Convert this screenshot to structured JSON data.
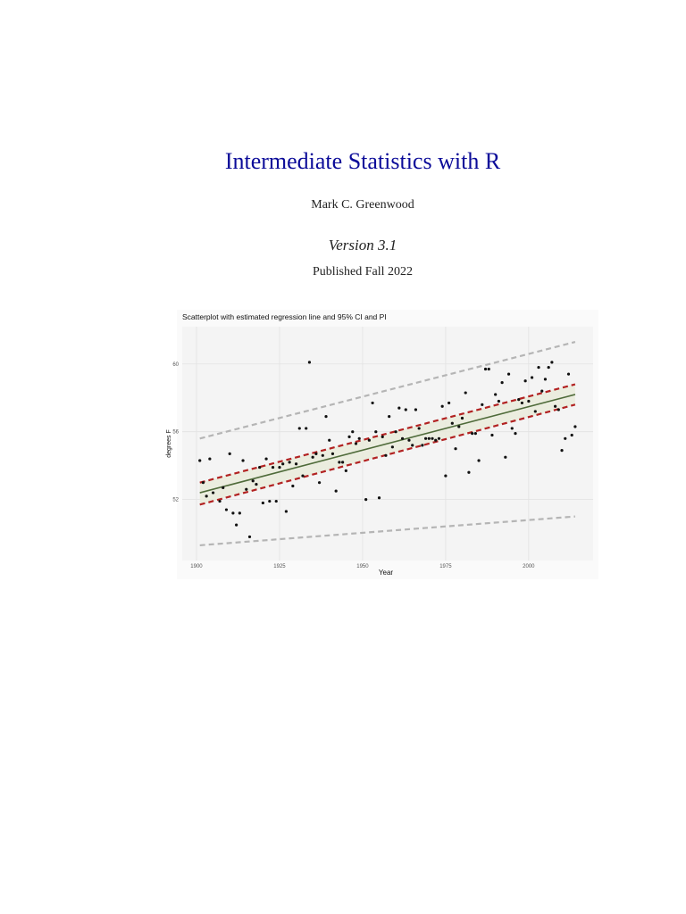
{
  "title": "Intermediate Statistics with R",
  "author": "Mark C. Greenwood",
  "version": "Version 3.1",
  "published": "Published Fall 2022",
  "chart_data": {
    "type": "scatter",
    "title": "Scatterplot with estimated regression line and 95% CI and PI",
    "xlabel": "Year",
    "ylabel": "degrees F",
    "x": [
      1901,
      1902,
      1903,
      1904,
      1905,
      1907,
      1908,
      1909,
      1910,
      1911,
      1912,
      1913,
      1914,
      1915,
      1916,
      1917,
      1918,
      1919,
      1920,
      1921,
      1922,
      1923,
      1924,
      1925,
      1926,
      1927,
      1928,
      1929,
      1930,
      1931,
      1932,
      1933,
      1934,
      1935,
      1936,
      1937,
      1938,
      1939,
      1940,
      1941,
      1942,
      1943,
      1944,
      1945,
      1946,
      1947,
      1948,
      1949,
      1951,
      1952,
      1953,
      1954,
      1955,
      1956,
      1957,
      1958,
      1959,
      1960,
      1961,
      1962,
      1963,
      1964,
      1965,
      1966,
      1967,
      1968,
      1969,
      1970,
      1971,
      1972,
      1973,
      1974,
      1975,
      1976,
      1977,
      1978,
      1979,
      1980,
      1981,
      1982,
      1983,
      1984,
      1985,
      1986,
      1987,
      1988,
      1989,
      1990,
      1991,
      1992,
      1993,
      1994,
      1995,
      1996,
      1997,
      1998,
      1999,
      2000,
      2001,
      2002,
      2003,
      2004,
      2005,
      2006,
      2007,
      2008,
      2009,
      2010,
      2011,
      2012,
      2013,
      2014
    ],
    "values": [
      54.3,
      53.0,
      52.2,
      54.4,
      52.4,
      51.9,
      52.7,
      51.4,
      54.7,
      51.2,
      50.5,
      51.2,
      54.3,
      52.6,
      49.8,
      53.1,
      52.9,
      53.9,
      51.8,
      54.4,
      51.9,
      53.9,
      51.9,
      53.9,
      54.1,
      51.3,
      54.2,
      52.8,
      54.1,
      56.2,
      53.4,
      56.2,
      60.1,
      54.5,
      54.7,
      53.0,
      54.6,
      56.9,
      55.5,
      54.7,
      52.5,
      54.2,
      54.2,
      53.7,
      55.7,
      56.0,
      55.3,
      55.6,
      52.0,
      55.5,
      57.7,
      56.0,
      52.1,
      55.7,
      54.6,
      56.9,
      55.1,
      56.0,
      57.4,
      55.6,
      57.3,
      55.5,
      55.2,
      57.3,
      56.2,
      55.2,
      55.6,
      55.6,
      55.6,
      55.5,
      55.6,
      57.5,
      53.4,
      57.7,
      56.5,
      55.0,
      56.3,
      56.8,
      58.3,
      53.6,
      55.9,
      55.9,
      54.3,
      57.6,
      59.7,
      59.7,
      55.8,
      58.2,
      57.8,
      58.9,
      54.5,
      59.4,
      56.2,
      55.9,
      57.9,
      57.7,
      59.0,
      57.8,
      59.2,
      57.2,
      59.8,
      58.4,
      59.1,
      59.8,
      60.1,
      57.5,
      57.3,
      54.9,
      55.6,
      59.4,
      55.8,
      56.3
    ],
    "color": "#111111",
    "xlim": [
      1895.7,
      2019.4
    ],
    "ylim": [
      48.4,
      62.2
    ],
    "xticks": [
      1900,
      1925,
      1950,
      1975,
      2000
    ],
    "yticks": [
      52,
      56,
      60
    ],
    "grid": true,
    "lines": [
      {
        "x": [
          1901,
          2014
        ],
        "values": [
          55.6,
          61.3
        ],
        "color": "#b5b5b5",
        "dash": true
      },
      {
        "x": [
          1901,
          2014
        ],
        "values": [
          49.3,
          51.0
        ],
        "color": "#b5b5b5",
        "dash": true
      },
      {
        "x": [
          1901,
          2014
        ],
        "values": [
          53.0,
          58.8
        ],
        "color": "#b22222",
        "dash": true
      },
      {
        "x": [
          1901,
          2014
        ],
        "values": [
          51.7,
          57.6
        ],
        "color": "#b22222",
        "dash": true
      },
      {
        "x": [
          1901,
          2014
        ],
        "values": [
          52.4,
          58.2
        ],
        "color": "#4f6b3a",
        "dash": false
      }
    ]
  }
}
